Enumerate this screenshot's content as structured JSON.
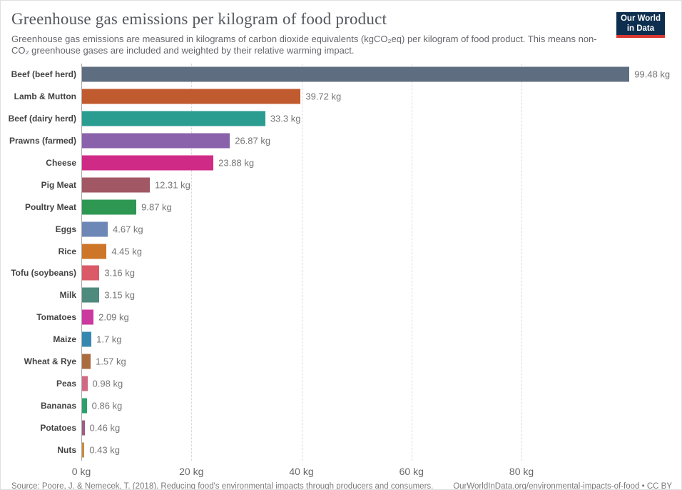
{
  "header": {
    "title": "Greenhouse gas emissions per kilogram of food product",
    "subtitle": "Greenhouse gas emissions are measured in kilograms of carbon dioxide equivalents (kgCO₂eq) per kilogram of food product. This means non-CO₂ greenhouse gases are included and weighted by their relative warming impact.",
    "logo": {
      "line1": "Our World",
      "line2": "in Data",
      "bg": "#0d2e4e",
      "accent": "#d93832"
    }
  },
  "chart_data": {
    "type": "bar",
    "orientation": "horizontal",
    "title": "Greenhouse gas emissions per kilogram of food product",
    "unit": "kg",
    "xlim": [
      0,
      108
    ],
    "grid": "dashed-vertical",
    "legend": "none",
    "xticks": {
      "values": [
        0,
        20,
        40,
        60,
        80
      ],
      "labels": [
        "0 kg",
        "20 kg",
        "40 kg",
        "60 kg",
        "80 kg"
      ]
    },
    "categories": [
      "Beef (beef herd)",
      "Lamb & Mutton",
      "Beef (dairy herd)",
      "Prawns (farmed)",
      "Cheese",
      "Pig Meat",
      "Poultry Meat",
      "Eggs",
      "Rice",
      "Tofu (soybeans)",
      "Milk",
      "Tomatoes",
      "Maize",
      "Wheat & Rye",
      "Peas",
      "Bananas",
      "Potatoes",
      "Nuts"
    ],
    "values": [
      99.48,
      39.72,
      33.3,
      26.87,
      23.88,
      12.31,
      9.87,
      4.67,
      4.45,
      3.16,
      3.15,
      2.09,
      1.7,
      1.57,
      0.98,
      0.86,
      0.46,
      0.43
    ],
    "value_labels": [
      "99.48 kg",
      "39.72 kg",
      "33.3 kg",
      "26.87 kg",
      "23.88 kg",
      "12.31 kg",
      "9.87 kg",
      "4.67 kg",
      "4.45 kg",
      "3.16 kg",
      "3.15 kg",
      "2.09 kg",
      "1.7 kg",
      "1.57 kg",
      "0.98 kg",
      "0.86 kg",
      "0.46 kg",
      "0.43 kg"
    ],
    "colors": [
      "#5e6d80",
      "#c05a2f",
      "#2a9c90",
      "#8a62ab",
      "#d02a87",
      "#a15864",
      "#2e9853",
      "#6d87b7",
      "#cd7528",
      "#da5b67",
      "#4e8a7d",
      "#cb3a9e",
      "#3788b0",
      "#aa6c3e",
      "#cf6a85",
      "#2ca06a",
      "#9d5c87",
      "#c98a3e"
    ]
  },
  "footer": {
    "source": "Source: Poore, J. & Nemecek, T. (2018). Reducing food's environmental impacts through producers and consumers.",
    "link": "OurWorldInData.org/environmental-impacts-of-food • CC BY"
  }
}
